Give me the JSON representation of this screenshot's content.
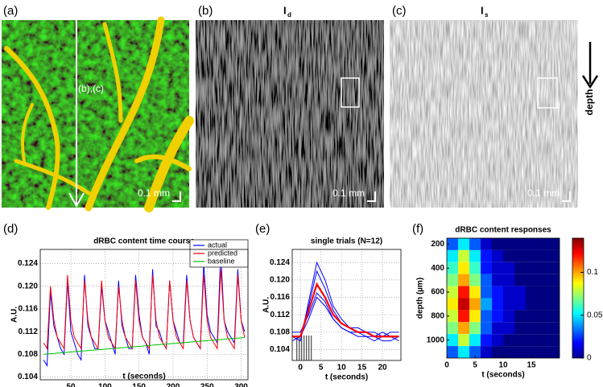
{
  "images": [
    {
      "label": "(a)",
      "annotation": "(b),(c)",
      "scale": "0.1 mm"
    },
    {
      "label": "(b)",
      "title": "I",
      "title_sub": "d",
      "scale": "0.1 mm"
    },
    {
      "label": "(c)",
      "title": "I",
      "title_sub": "s",
      "scale": "0.1 mm",
      "direction": "depth"
    }
  ],
  "chart_data": [
    {
      "type": "line",
      "label": "(d)",
      "title": "dRBC content time course",
      "xlabel": "t (seconds)",
      "ylabel": "A.U.",
      "x": [
        10,
        15,
        20,
        25,
        30,
        35,
        40,
        45,
        50,
        55,
        60,
        65,
        70,
        75,
        80,
        85,
        90,
        95,
        100,
        105,
        110,
        115,
        120,
        125,
        130,
        135,
        140,
        145,
        150,
        155,
        160,
        165,
        170,
        175,
        180,
        185,
        190,
        195,
        200,
        205,
        210,
        215,
        220,
        225,
        230,
        235,
        240,
        245,
        250,
        255,
        260,
        265,
        270,
        275,
        280,
        285,
        290,
        295,
        300,
        305
      ],
      "series": [
        {
          "name": "actual",
          "color": "#0000ff",
          "values": [
            0.107,
            0.106,
            0.119,
            0.113,
            0.111,
            0.109,
            0.108,
            0.121,
            0.112,
            0.11,
            0.108,
            0.107,
            0.122,
            0.113,
            0.111,
            0.109,
            0.109,
            0.12,
            0.114,
            0.112,
            0.11,
            0.108,
            0.121,
            0.113,
            0.111,
            0.109,
            0.109,
            0.122,
            0.115,
            0.111,
            0.11,
            0.108,
            0.123,
            0.113,
            0.112,
            0.11,
            0.109,
            0.121,
            0.114,
            0.112,
            0.11,
            0.11,
            0.122,
            0.114,
            0.111,
            0.11,
            0.109,
            0.124,
            0.115,
            0.112,
            0.111,
            0.11,
            0.126,
            0.114,
            0.112,
            0.111,
            0.11,
            0.123,
            0.114,
            0.112
          ]
        },
        {
          "name": "predicted",
          "color": "#ff0000",
          "values": [
            0.11,
            0.109,
            0.12,
            0.114,
            0.111,
            0.11,
            0.109,
            0.122,
            0.114,
            0.111,
            0.11,
            0.109,
            0.121,
            0.114,
            0.111,
            0.11,
            0.109,
            0.121,
            0.114,
            0.111,
            0.11,
            0.109,
            0.12,
            0.114,
            0.111,
            0.11,
            0.109,
            0.121,
            0.114,
            0.111,
            0.11,
            0.109,
            0.122,
            0.114,
            0.111,
            0.11,
            0.109,
            0.121,
            0.114,
            0.111,
            0.11,
            0.109,
            0.121,
            0.114,
            0.111,
            0.11,
            0.109,
            0.122,
            0.114,
            0.111,
            0.11,
            0.109,
            0.123,
            0.114,
            0.111,
            0.11,
            0.109,
            0.122,
            0.114,
            0.111
          ]
        },
        {
          "name": "baseline",
          "color": "#00c000",
          "values": [
            0.108,
            0.10805,
            0.1081,
            0.10815,
            0.1082,
            0.10825,
            0.1083,
            0.10835,
            0.1084,
            0.10845,
            0.1085,
            0.10855,
            0.1086,
            0.10865,
            0.1087,
            0.10875,
            0.1088,
            0.10885,
            0.1089,
            0.10895,
            0.109,
            0.10905,
            0.1091,
            0.10915,
            0.1092,
            0.10925,
            0.1093,
            0.10935,
            0.1094,
            0.10945,
            0.1095,
            0.10955,
            0.1096,
            0.10965,
            0.1097,
            0.10975,
            0.1098,
            0.10985,
            0.1099,
            0.10995,
            0.11,
            0.11005,
            0.1101,
            0.11015,
            0.1102,
            0.11025,
            0.1103,
            0.11035,
            0.1104,
            0.11045,
            0.1105,
            0.11055,
            0.1106,
            0.11065,
            0.1107,
            0.11075,
            0.1108,
            0.11085,
            0.1109,
            0.11095
          ]
        }
      ],
      "xlim": [
        5,
        310
      ],
      "xticks": [
        50,
        100,
        150,
        200,
        250,
        300
      ],
      "ylim": [
        0.1035,
        0.1265
      ],
      "yticks": [
        0.104,
        0.108,
        0.112,
        0.116,
        {
          "value": 0.12,
          "label": "0.120"
        },
        0.124
      ],
      "grid": true,
      "legend": "upper right"
    },
    {
      "type": "line",
      "label": "(e)",
      "title": "single trials (N=12)",
      "xlabel": "t (seconds)",
      "ylabel": "A.U.",
      "x": [
        -2,
        0,
        2,
        4,
        6,
        8,
        10,
        12,
        14,
        16,
        18,
        20,
        22,
        24
      ],
      "series": [
        {
          "color": "#0000ff",
          "values": [
            0.106,
            0.107,
            0.114,
            0.122,
            0.118,
            0.113,
            0.11,
            0.109,
            0.108,
            0.108,
            0.107,
            0.108,
            0.107,
            0.107
          ]
        },
        {
          "color": "#0000ff",
          "values": [
            0.108,
            0.108,
            0.112,
            0.117,
            0.115,
            0.111,
            0.109,
            0.108,
            0.107,
            0.107,
            0.106,
            0.107,
            0.107,
            0.106
          ]
        },
        {
          "color": "#0000ff",
          "values": [
            0.107,
            0.106,
            0.115,
            0.124,
            0.12,
            0.114,
            0.111,
            0.109,
            0.109,
            0.108,
            0.108,
            0.107,
            0.108,
            0.108
          ]
        },
        {
          "color": "#0000ff",
          "values": [
            0.107,
            0.107,
            0.111,
            0.116,
            0.114,
            0.111,
            0.109,
            0.108,
            0.108,
            0.107,
            0.107,
            0.106,
            0.106,
            0.107
          ]
        },
        {
          "color": "#ff0000",
          "values": [
            0.107,
            0.107,
            0.113,
            0.119,
            0.116,
            0.112,
            0.11,
            0.109,
            0.108,
            0.108,
            0.107,
            0.107,
            0.107,
            0.107
          ]
        }
      ],
      "xlim": [
        -2,
        24.5
      ],
      "xticks": [
        0,
        5,
        10,
        15,
        20
      ],
      "ylim": [
        0.1015,
        0.127
      ],
      "yticks": [
        0.104,
        0.108,
        0.112,
        0.116,
        {
          "value": 0.12,
          "label": "0.120"
        },
        0.124
      ],
      "grid": true
    },
    {
      "type": "heatmap",
      "label": "(f)",
      "title": "dRBC content responses",
      "xlabel": "t (seconds)",
      "ylabel": "depth (µm)",
      "x": [
        1,
        3,
        5,
        7,
        9,
        11,
        13,
        15,
        17,
        19
      ],
      "y": [
        200,
        300,
        400,
        500,
        600,
        700,
        800,
        900,
        1000,
        1100
      ],
      "z": [
        [
          0.03,
          0.05,
          0.03,
          0.01,
          0,
          0,
          0,
          0,
          0,
          0
        ],
        [
          0.05,
          0.08,
          0.05,
          0.02,
          0.01,
          0,
          0,
          0,
          0,
          0
        ],
        [
          0.06,
          0.09,
          0.06,
          0.02,
          0.01,
          0.01,
          0,
          0,
          0,
          0
        ],
        [
          0.07,
          0.1,
          0.07,
          0.03,
          0.01,
          0.01,
          0,
          0,
          0,
          0
        ],
        [
          0.08,
          0.12,
          0.09,
          0.03,
          0.02,
          0.01,
          0.01,
          0,
          0,
          0
        ],
        [
          0.09,
          0.13,
          0.1,
          0.04,
          0.02,
          0.01,
          0.01,
          0,
          0,
          0
        ],
        [
          0.08,
          0.12,
          0.09,
          0.03,
          0.02,
          0.01,
          0,
          0,
          0,
          0
        ],
        [
          0.07,
          0.1,
          0.07,
          0.03,
          0.01,
          0.01,
          0,
          0,
          0,
          0
        ],
        [
          0.05,
          0.08,
          0.05,
          0.02,
          0.01,
          0,
          0,
          0,
          0,
          0
        ],
        [
          0.03,
          0.05,
          0.03,
          0.01,
          0,
          0,
          0,
          0,
          0,
          0
        ]
      ],
      "xlim": [
        0,
        20
      ],
      "xticks": [
        0,
        5,
        10,
        15
      ],
      "ylim": [
        150,
        1150
      ],
      "yticks": [
        200,
        400,
        600,
        800,
        1000
      ],
      "y_inverted": true,
      "colormap": "jet",
      "clim": [
        0,
        0.14
      ],
      "cticks": [
        0,
        0.05,
        0.1
      ]
    }
  ]
}
